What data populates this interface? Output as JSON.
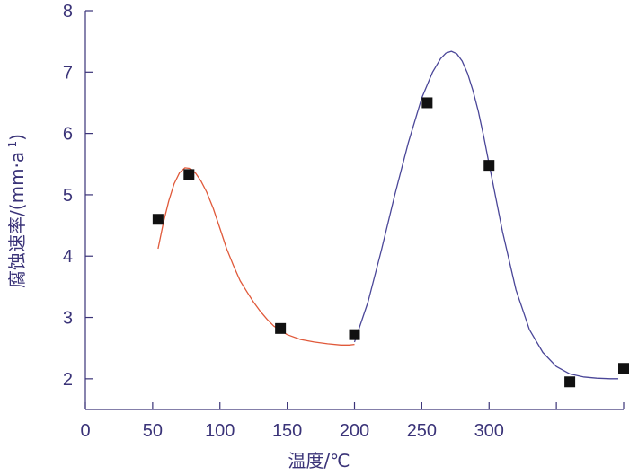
{
  "chart_data": {
    "type": "scatter",
    "title": "",
    "xlabel": "温度/℃",
    "ylabel": "腐蚀速率/(mm·a",
    "ylabel_superscript": "-1",
    "ylabel_suffix": ")",
    "xlim": [
      0,
      400
    ],
    "ylim": [
      1.5,
      8
    ],
    "x_ticks": [
      0,
      50,
      100,
      150,
      200,
      250,
      300,
      350,
      400
    ],
    "x_tick_labels": [
      "0",
      "50",
      "100",
      "150",
      "200",
      "250",
      "300",
      "",
      ""
    ],
    "y_ticks": [
      2,
      3,
      4,
      5,
      6,
      7,
      8
    ],
    "y_tick_labels": [
      "2",
      "3",
      "4",
      "5",
      "6",
      "7",
      "8"
    ],
    "grid": false,
    "colors": {
      "axis": "#3a3378",
      "marker": "#111111",
      "fit_orange": "#e0593a",
      "fit_blue": "#4a4698"
    },
    "series": [
      {
        "kind": "points",
        "x": [
          54,
          77,
          145,
          200,
          254,
          300,
          360,
          400
        ],
        "y": [
          4.6,
          5.33,
          2.82,
          2.72,
          6.5,
          5.48,
          1.95,
          2.17
        ]
      },
      {
        "kind": "curve",
        "color": "#e0593a",
        "x": [
          54,
          58,
          62,
          66,
          70,
          74,
          78,
          82,
          86,
          90,
          95,
          100,
          105,
          110,
          115,
          120,
          125,
          130,
          135,
          140,
          150,
          160,
          170,
          180,
          190,
          196,
          200
        ],
        "y": [
          4.12,
          4.55,
          4.9,
          5.18,
          5.36,
          5.44,
          5.43,
          5.35,
          5.22,
          5.05,
          4.78,
          4.45,
          4.12,
          3.85,
          3.6,
          3.42,
          3.25,
          3.1,
          2.97,
          2.86,
          2.72,
          2.64,
          2.6,
          2.57,
          2.55,
          2.55,
          2.56
        ]
      },
      {
        "kind": "curve",
        "color": "#4a4698",
        "x": [
          200,
          210,
          220,
          230,
          240,
          250,
          258,
          264,
          268,
          272,
          276,
          280,
          284,
          288,
          292,
          296,
          300,
          310,
          320,
          330,
          340,
          350,
          360,
          370,
          380,
          390,
          396
        ],
        "y": [
          2.6,
          3.25,
          4.1,
          5.0,
          5.85,
          6.58,
          7.0,
          7.22,
          7.31,
          7.34,
          7.3,
          7.18,
          6.98,
          6.7,
          6.36,
          5.95,
          5.5,
          4.4,
          3.45,
          2.8,
          2.43,
          2.2,
          2.08,
          2.03,
          2.01,
          2.0,
          2.0
        ]
      }
    ]
  }
}
